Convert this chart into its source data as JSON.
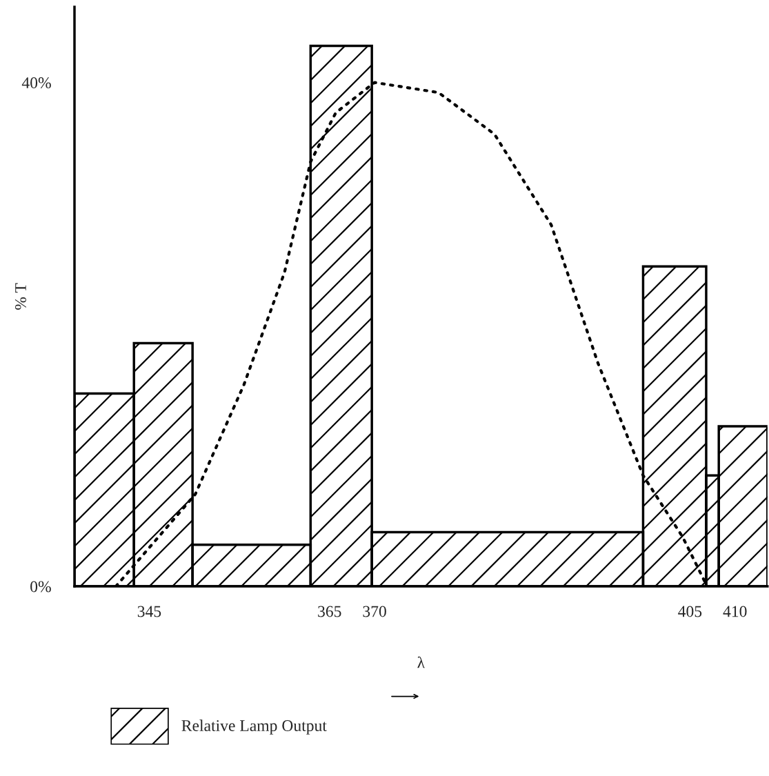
{
  "chart_data": {
    "type": "histogram",
    "ylabel": "% T",
    "xlabel": "λ",
    "xlim": [
      336.7,
      413.6
    ],
    "xticks": [
      345,
      365,
      370,
      405,
      410
    ],
    "ylim": [
      0,
      46
    ],
    "yticks": [
      {
        "value": 0,
        "label": "0%"
      },
      {
        "value": 40,
        "label": "40%"
      }
    ],
    "grid": false,
    "legend": "bottom left",
    "series": [
      {
        "name": "Relative Lamp Output",
        "color": "#000000",
        "bins": [
          336.7,
          343.3,
          349.8,
          362.9,
          369.7,
          399.8,
          406.8,
          408.2,
          413.6
        ],
        "values": [
          15.3,
          19.3,
          3.3,
          42.9,
          4.3,
          25.4,
          8.8,
          12.7
        ]
      },
      {
        "type": "line",
        "color": "#000000",
        "line_style": "dotted",
        "x": [
          341.3,
          350.1,
          355.5,
          360.0,
          362.9,
          365.7,
          370.0,
          377.1,
          383.3,
          389.6,
          394.8,
          399.8,
          404.2,
          406.9
        ],
        "values": [
          0,
          7.3,
          16,
          24.9,
          33.7,
          37.6,
          40,
          39.2,
          35.9,
          28.7,
          17.7,
          8.8,
          3.9,
          0
        ]
      }
    ]
  }
}
